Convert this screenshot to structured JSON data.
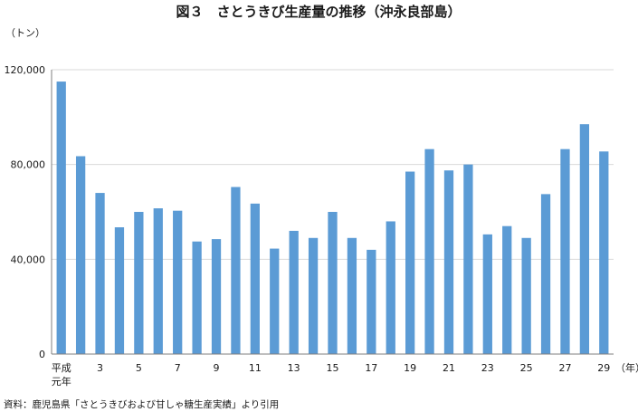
{
  "chart_data": {
    "type": "bar",
    "title": "図３　さとうきび生産量の推移（沖永良部島）",
    "ylabel": "（トン）",
    "xlabel": "（年）",
    "ylim": [
      0,
      120000
    ],
    "y_ticks": [
      "0",
      "40,000",
      "80,000",
      "120,000"
    ],
    "grid": true,
    "colors": {
      "bar": "#5b9bd5",
      "grid": "#d9d9d9",
      "axis": "#7f7f7f"
    },
    "categories": [
      "平成元年",
      "2",
      "3",
      "4",
      "5",
      "6",
      "7",
      "8",
      "9",
      "10",
      "11",
      "12",
      "13",
      "14",
      "15",
      "16",
      "17",
      "18",
      "19",
      "20",
      "21",
      "22",
      "23",
      "24",
      "25",
      "26",
      "27",
      "28",
      "29"
    ],
    "x_tick_labels": [
      [
        "平成",
        "元年"
      ],
      [],
      [
        "3"
      ],
      [],
      [
        "5"
      ],
      [],
      [
        "7"
      ],
      [],
      [
        "9"
      ],
      [],
      [
        "11"
      ],
      [],
      [
        "13"
      ],
      [],
      [
        "15"
      ],
      [],
      [
        "17"
      ],
      [],
      [
        "19"
      ],
      [],
      [
        "21"
      ],
      [],
      [
        "23"
      ],
      [],
      [
        "25"
      ],
      [],
      [
        "27"
      ],
      [],
      [
        "29"
      ]
    ],
    "values": [
      115000,
      83500,
      68000,
      53500,
      60000,
      61500,
      60500,
      47500,
      48500,
      70500,
      63500,
      44500,
      52000,
      49000,
      60000,
      49000,
      44000,
      56000,
      77000,
      86500,
      77500,
      80000,
      50500,
      54000,
      49000,
      67500,
      86500,
      97000,
      85500
    ]
  },
  "source": "資料：鹿児島県「さとうきびおよび甘しゃ糖生産実績」より引用"
}
